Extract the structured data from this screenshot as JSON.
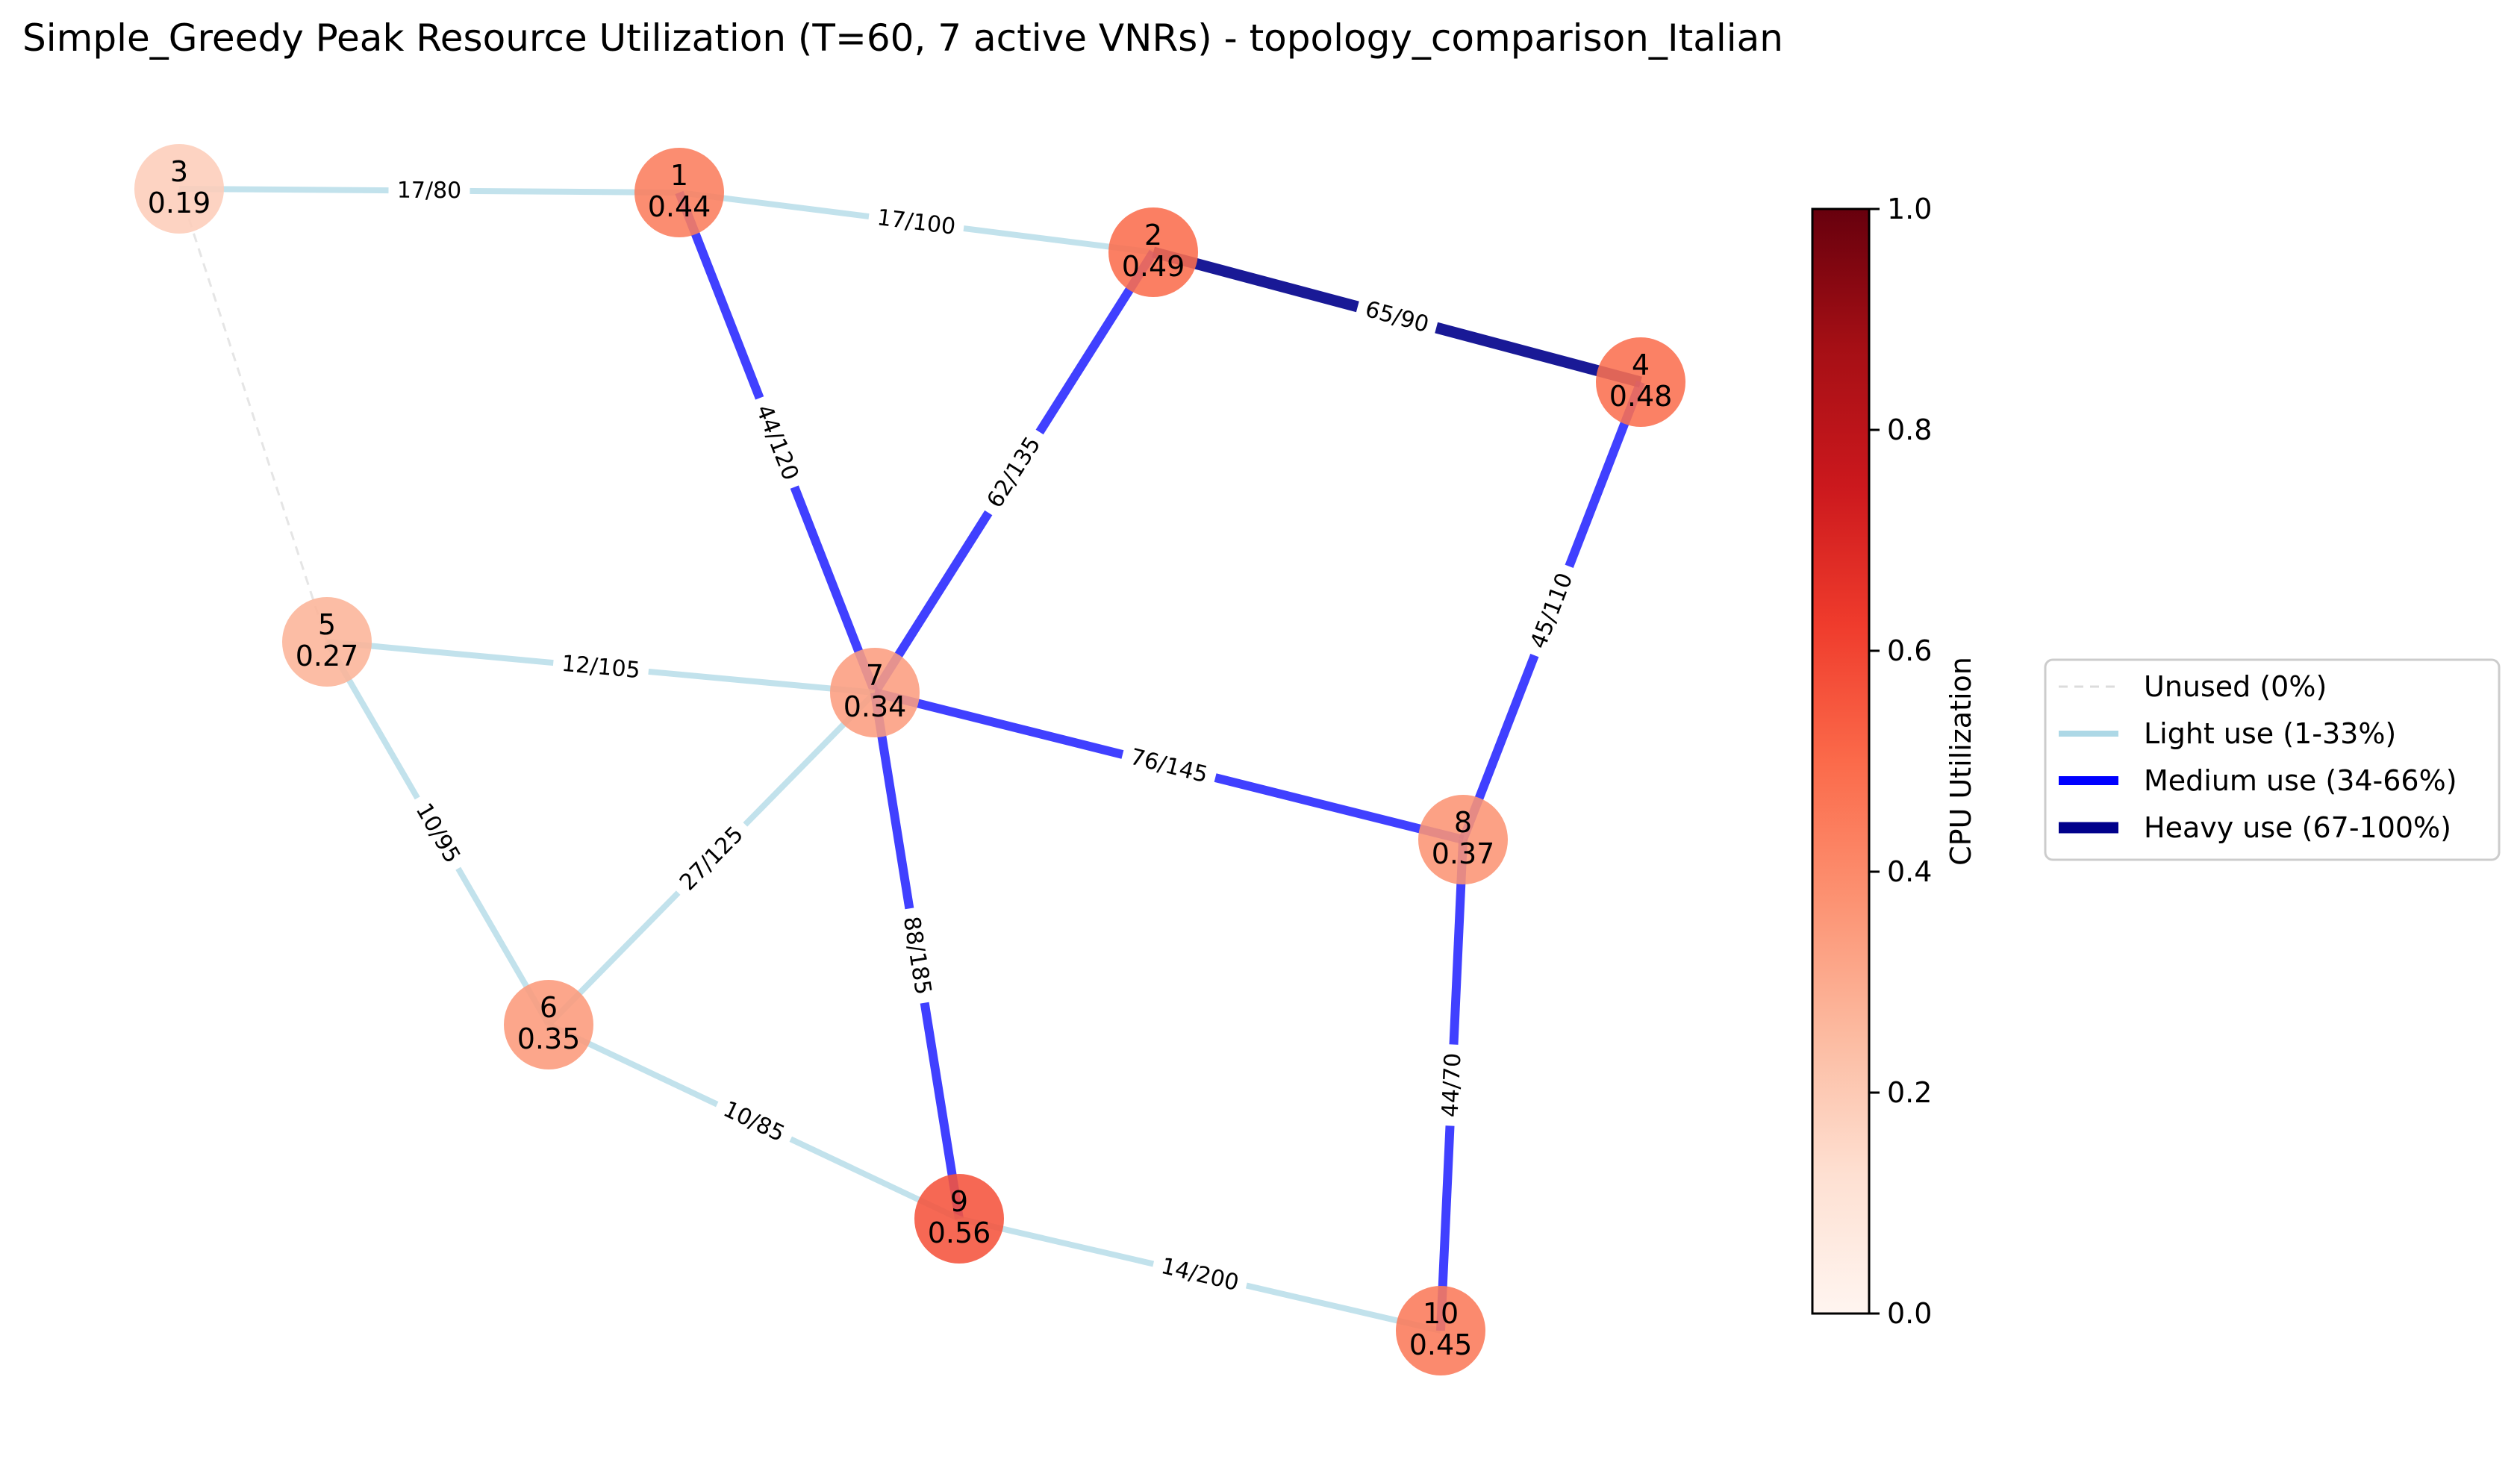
{
  "title": "Simple_Greedy Peak Resource Utilization (T=60, 7 active VNRs) - topology_comparison_Italian",
  "colors": {
    "unused": "#d3d3d3",
    "light": "#add8e6",
    "medium": "#0000ff",
    "heavy": "#00008b"
  },
  "nodes": [
    {
      "id": "1",
      "util": "0.44"
    },
    {
      "id": "2",
      "util": "0.49"
    },
    {
      "id": "3",
      "util": "0.19"
    },
    {
      "id": "4",
      "util": "0.48"
    },
    {
      "id": "5",
      "util": "0.27"
    },
    {
      "id": "6",
      "util": "0.35"
    },
    {
      "id": "7",
      "util": "0.34"
    },
    {
      "id": "8",
      "util": "0.37"
    },
    {
      "id": "9",
      "util": "0.56"
    },
    {
      "id": "10",
      "util": "0.45"
    }
  ],
  "edges": [
    {
      "source": "3",
      "target": "1",
      "label": "17/80",
      "usage": "light"
    },
    {
      "source": "1",
      "target": "2",
      "label": "17/100",
      "usage": "light"
    },
    {
      "source": "2",
      "target": "4",
      "label": "65/90",
      "usage": "heavy"
    },
    {
      "source": "1",
      "target": "7",
      "label": "44/120",
      "usage": "medium"
    },
    {
      "source": "2",
      "target": "7",
      "label": "62/135",
      "usage": "medium"
    },
    {
      "source": "4",
      "target": "8",
      "label": "45/110",
      "usage": "medium"
    },
    {
      "source": "3",
      "target": "5",
      "label": "",
      "usage": "unused"
    },
    {
      "source": "5",
      "target": "7",
      "label": "12/105",
      "usage": "light"
    },
    {
      "source": "5",
      "target": "6",
      "label": "10/95",
      "usage": "light"
    },
    {
      "source": "7",
      "target": "6",
      "label": "27/125",
      "usage": "light"
    },
    {
      "source": "7",
      "target": "8",
      "label": "76/145",
      "usage": "medium"
    },
    {
      "source": "7",
      "target": "9",
      "label": "88/185",
      "usage": "medium"
    },
    {
      "source": "6",
      "target": "9",
      "label": "10/85",
      "usage": "light"
    },
    {
      "source": "9",
      "target": "10",
      "label": "14/200",
      "usage": "light"
    },
    {
      "source": "8",
      "target": "10",
      "label": "44/70",
      "usage": "medium"
    }
  ],
  "colorbar": {
    "label": "CPU Utilization",
    "ticks": [
      "0.0",
      "0.2",
      "0.4",
      "0.6",
      "0.8",
      "1.0"
    ],
    "colormap": "Reds",
    "range": [
      0,
      1
    ]
  },
  "legend": [
    {
      "label": "Unused (0%)",
      "usage": "unused"
    },
    {
      "label": "Light use (1-33%)",
      "usage": "light"
    },
    {
      "label": "Medium use (34-66%)",
      "usage": "medium"
    },
    {
      "label": "Heavy use (67-100%)",
      "usage": "heavy"
    }
  ]
}
